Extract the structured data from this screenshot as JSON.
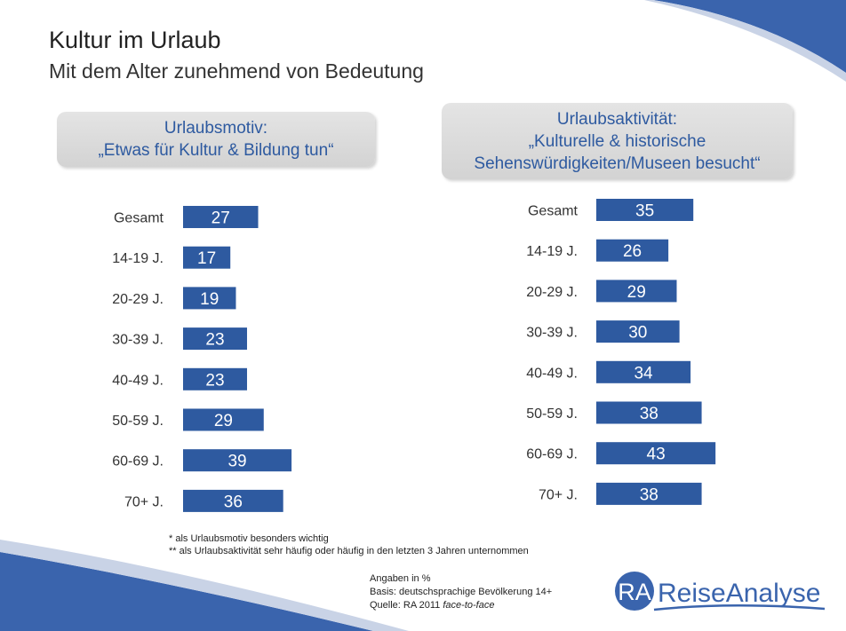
{
  "slide": {
    "title": "Kultur im Urlaub",
    "subtitle": "Mit dem Alter zunehmend von Bedeutung"
  },
  "panels": {
    "left": {
      "line1": "Urlaubsmotiv:",
      "line2": "„Etwas für Kultur & Bildung tun“"
    },
    "right": {
      "line1": "Urlaubsaktivität:",
      "line2": "„Kulturelle & historische",
      "line3": "Sehenswürdigkeiten/Museen besucht“"
    }
  },
  "chart_data": [
    {
      "type": "bar",
      "orientation": "horizontal",
      "categories": [
        "Gesamt",
        "14-19 J.",
        "20-29 J.",
        "30-39 J.",
        "40-49 J.",
        "50-59 J.",
        "60-69 J.",
        "70+ J."
      ],
      "values": [
        27,
        17,
        19,
        23,
        23,
        29,
        39,
        36
      ],
      "data_labels": true,
      "bar_color": "#2e5aa0",
      "axis": "none",
      "grid": false
    },
    {
      "type": "bar",
      "orientation": "horizontal",
      "categories": [
        "Gesamt",
        "14-19 J.",
        "20-29 J.",
        "30-39 J.",
        "40-49 J.",
        "50-59 J.",
        "60-69 J.",
        "70+ J."
      ],
      "values": [
        35,
        26,
        29,
        30,
        34,
        38,
        43,
        38
      ],
      "data_labels": true,
      "bar_color": "#2e5aa0",
      "axis": "none",
      "grid": false
    }
  ],
  "footnotes": {
    "line1": "* als Urlaubsmotiv besonders wichtig",
    "line2": "** als Urlaubsaktivität sehr häufig oder häufig in den letzten 3 Jahren unternommen"
  },
  "source": {
    "line1": "Angaben in %",
    "line2": "Basis: deutschsprachige Bevölkerung 14+",
    "line3_prefix": "Quelle: RA 2011 ",
    "line3_method": "face-to-face"
  },
  "logo": {
    "mark": "RA",
    "name": "ReiseAnalyse"
  },
  "colors": {
    "accent": "#2e5aa0",
    "bar": "#2e5aa0",
    "swoosh": "#3a64ad"
  }
}
